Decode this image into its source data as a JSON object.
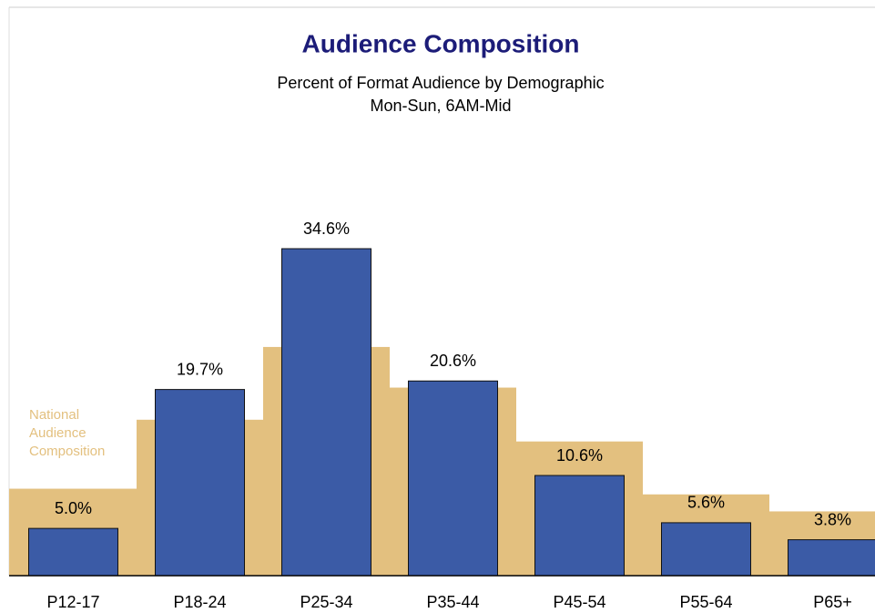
{
  "chart_data": {
    "type": "bar",
    "title": "Audience Composition",
    "subtitle": [
      "Percent of Format Audience by Demographic",
      "Mon-Sun, 6AM-Mid"
    ],
    "categories": [
      "P12-17",
      "P18-24",
      "P25-34",
      "P35-44",
      "P45-54",
      "P55-64",
      "P65+"
    ],
    "series": [
      {
        "color": "#3b5ba6",
        "values": [
          5.0,
          19.7,
          34.6,
          20.6,
          10.6,
          5.6,
          3.8
        ],
        "value_labels": [
          "5.0%",
          "19.7%",
          "34.6%",
          "20.6%",
          "10.6%",
          "5.6%",
          "3.8%"
        ]
      },
      {
        "name": "National Audience Composition",
        "color": "#e3c07f",
        "values": [
          9.2,
          16.5,
          24.2,
          19.9,
          14.2,
          8.6,
          6.8
        ]
      }
    ],
    "ylim": [
      0,
      40
    ]
  }
}
